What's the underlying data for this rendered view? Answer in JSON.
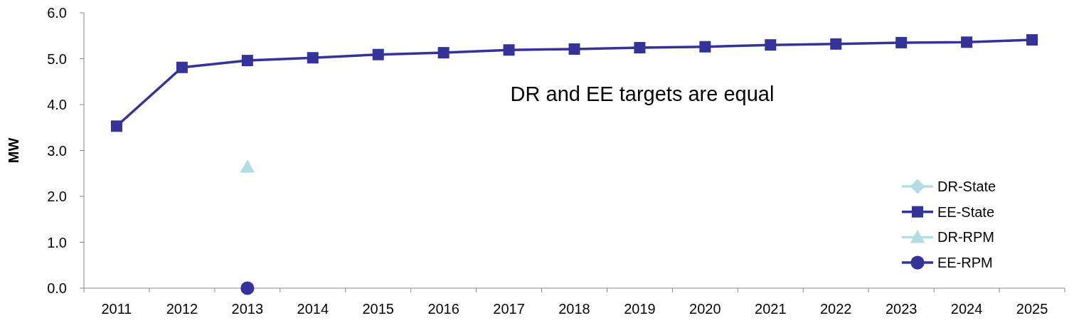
{
  "chart_data": {
    "type": "line",
    "ylabel": "MW",
    "categories": [
      "2011",
      "2012",
      "2013",
      "2014",
      "2015",
      "2016",
      "2017",
      "2018",
      "2019",
      "2020",
      "2021",
      "2022",
      "2023",
      "2024",
      "2025"
    ],
    "series": [
      {
        "name": "DR-State",
        "color": "#b4dde3",
        "marker": "diamond",
        "values": [
          null,
          null,
          null,
          null,
          null,
          null,
          null,
          null,
          null,
          null,
          null,
          null,
          null,
          null,
          null
        ]
      },
      {
        "name": "EE-State",
        "color": "#333399",
        "marker": "square",
        "values": [
          3.53,
          4.81,
          4.96,
          5.02,
          5.09,
          5.13,
          5.19,
          5.21,
          5.24,
          5.26,
          5.3,
          5.32,
          5.35,
          5.36,
          5.41
        ]
      },
      {
        "name": "DR-RPM",
        "color": "#b4dde3",
        "marker": "triangle",
        "values": [
          null,
          null,
          2.64,
          null,
          null,
          null,
          null,
          null,
          null,
          null,
          null,
          null,
          null,
          null,
          null
        ]
      },
      {
        "name": "EE-RPM",
        "color": "#333399",
        "marker": "circle",
        "values": [
          null,
          null,
          0,
          null,
          null,
          null,
          null,
          null,
          null,
          null,
          null,
          null,
          null,
          null,
          null
        ]
      }
    ],
    "ylim": [
      0,
      6
    ],
    "yticks": [
      {
        "value": 0,
        "label": "0.0"
      },
      {
        "value": 1,
        "label": "1.0"
      },
      {
        "value": 2,
        "label": "2.0"
      },
      {
        "value": 3,
        "label": "3.0"
      },
      {
        "value": 4,
        "label": "4.0"
      },
      {
        "value": 5,
        "label": "5.0"
      },
      {
        "value": 6,
        "label": "6.0"
      }
    ],
    "legend": "bottom right",
    "annotations": [
      "DR and EE targets are equal"
    ]
  }
}
